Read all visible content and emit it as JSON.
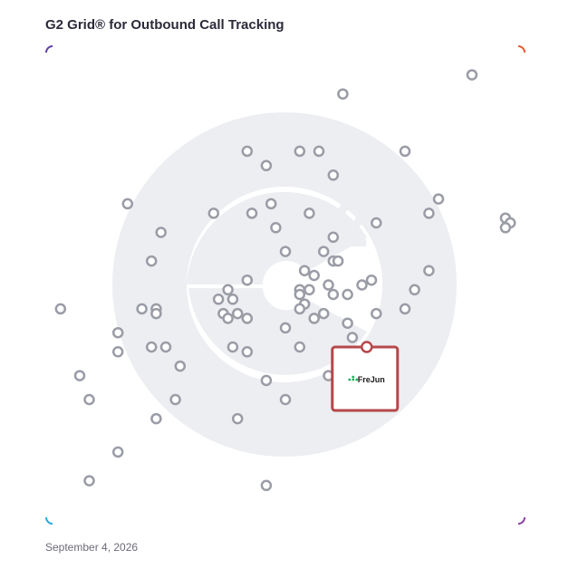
{
  "title": "G2 Grid® for Outbound Call Tracking",
  "date": "September 4, 2026",
  "colors": {
    "dot_stroke": "#9a9ca6",
    "highlight": "#b5484b",
    "watermark": "#eceef1",
    "frame_top_left": "#5b3fa8",
    "frame_top_right": "#e8582f",
    "frame_bottom_left": "#2aa6d9",
    "frame_bottom_right": "#8a3fa8"
  },
  "chart_data": {
    "type": "scatter",
    "title": "G2 Grid® for Outbound Call Tracking",
    "xlabel": "",
    "ylabel": "",
    "xlim": [
      0,
      100
    ],
    "ylim": [
      0,
      100
    ],
    "grid": "quadrants",
    "points": [
      [
        89,
        94
      ],
      [
        62,
        90
      ],
      [
        42,
        78
      ],
      [
        53,
        78
      ],
      [
        57,
        78
      ],
      [
        75,
        78
      ],
      [
        46,
        75
      ],
      [
        60,
        73
      ],
      [
        17,
        67
      ],
      [
        47,
        67
      ],
      [
        82,
        68
      ],
      [
        35,
        65
      ],
      [
        43,
        65
      ],
      [
        55,
        65
      ],
      [
        80,
        65
      ],
      [
        96,
        64
      ],
      [
        97,
        63
      ],
      [
        96,
        62
      ],
      [
        24,
        61
      ],
      [
        48,
        62
      ],
      [
        69,
        63
      ],
      [
        60,
        60
      ],
      [
        22,
        55
      ],
      [
        50,
        57
      ],
      [
        58,
        57
      ],
      [
        60,
        55
      ],
      [
        61,
        55
      ],
      [
        54,
        53
      ],
      [
        56,
        52
      ],
      [
        80,
        53
      ],
      [
        42,
        51
      ],
      [
        59,
        50
      ],
      [
        66,
        50
      ],
      [
        68,
        51
      ],
      [
        38,
        49
      ],
      [
        53,
        49
      ],
      [
        55,
        49
      ],
      [
        77,
        49
      ],
      [
        36,
        47
      ],
      [
        39,
        47
      ],
      [
        60,
        48
      ],
      [
        63,
        48
      ],
      [
        53,
        48
      ],
      [
        54,
        46
      ],
      [
        3,
        45
      ],
      [
        20,
        45
      ],
      [
        23,
        45
      ],
      [
        37,
        44
      ],
      [
        53,
        45
      ],
      [
        58,
        44
      ],
      [
        69,
        44
      ],
      [
        75,
        45
      ],
      [
        40,
        44
      ],
      [
        56,
        43
      ],
      [
        23,
        44
      ],
      [
        38,
        43
      ],
      [
        42,
        43
      ],
      [
        50,
        41
      ],
      [
        63,
        42
      ],
      [
        15,
        40
      ],
      [
        64,
        39
      ],
      [
        22,
        37
      ],
      [
        25,
        37
      ],
      [
        39,
        37
      ],
      [
        42,
        36
      ],
      [
        53,
        37
      ],
      [
        15,
        36
      ],
      [
        28,
        33
      ],
      [
        7,
        31
      ],
      [
        59,
        31
      ],
      [
        46,
        30
      ],
      [
        27,
        26
      ],
      [
        9,
        26
      ],
      [
        50,
        26
      ],
      [
        23,
        22
      ],
      [
        40,
        22
      ],
      [
        15,
        15
      ],
      [
        9,
        9
      ],
      [
        46,
        8
      ]
    ],
    "highlight": {
      "label": "FreJun",
      "x": 67,
      "y": 37
    }
  }
}
